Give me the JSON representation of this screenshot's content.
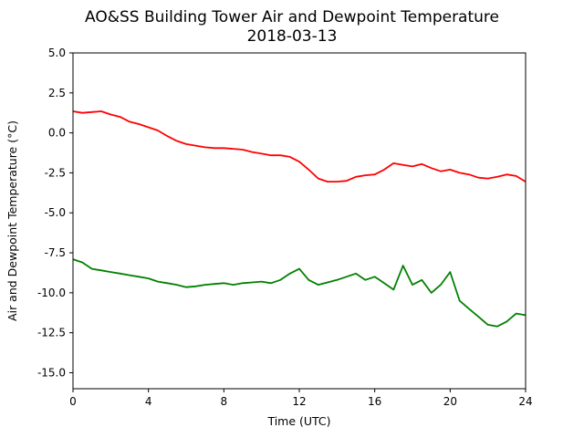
{
  "chart_data": {
    "type": "line",
    "title": "AO&SS Building Tower Air and Dewpoint Temperature",
    "subtitle": "2018-03-13",
    "xlabel": "Time (UTC)",
    "ylabel": "Air and Dewpoint Temperature (°C)",
    "xlim": [
      0,
      24
    ],
    "ylim": [
      -16.0,
      5.0
    ],
    "xticks": [
      0,
      4,
      8,
      12,
      16,
      20,
      24
    ],
    "yticks": [
      "5.0",
      "2.5",
      "0.0",
      "-2.5",
      "-5.0",
      "-7.5",
      "-10.0",
      "-12.5",
      "-15.0"
    ],
    "grid": false,
    "legend": "none",
    "series": [
      {
        "color": "#ff0000",
        "x": [
          0,
          0.5,
          1,
          1.5,
          2,
          2.5,
          3,
          3.5,
          4,
          4.5,
          5,
          5.5,
          6,
          6.5,
          7,
          7.5,
          8,
          8.5,
          9,
          9.5,
          10,
          10.5,
          11,
          11.5,
          12,
          12.5,
          13,
          13.5,
          14,
          14.5,
          15,
          15.5,
          16,
          16.5,
          17,
          17.5,
          18,
          18.5,
          19,
          19.5,
          20,
          20.5,
          21,
          21.5,
          22,
          22.5,
          23,
          23.5,
          24
        ],
        "y": [
          1.35,
          1.25,
          1.3,
          1.35,
          1.15,
          1.0,
          0.7,
          0.55,
          0.35,
          0.15,
          -0.2,
          -0.5,
          -0.7,
          -0.8,
          -0.9,
          -0.95,
          -0.95,
          -1.0,
          -1.05,
          -1.2,
          -1.3,
          -1.4,
          -1.4,
          -1.5,
          -1.8,
          -2.3,
          -2.85,
          -3.05,
          -3.05,
          -3.0,
          -2.75,
          -2.65,
          -2.6,
          -2.3,
          -1.9,
          -2.0,
          -2.1,
          -1.95,
          -2.2,
          -2.4,
          -2.3,
          -2.5,
          -2.6,
          -2.8,
          -2.85,
          -2.75,
          -2.6,
          -2.7,
          -3.05
        ]
      },
      {
        "color": "#008000",
        "x": [
          0,
          0.5,
          1,
          1.5,
          2,
          2.5,
          3,
          3.5,
          4,
          4.5,
          5,
          5.5,
          6,
          6.5,
          7,
          7.5,
          8,
          8.5,
          9,
          9.5,
          10,
          10.5,
          11,
          11.5,
          12,
          12.5,
          13,
          13.5,
          14,
          14.5,
          15,
          15.5,
          16,
          16.5,
          17,
          17.5,
          18,
          18.5,
          19,
          19.5,
          20,
          20.5,
          21,
          21.5,
          22,
          22.5,
          23,
          23.5,
          24
        ],
        "y": [
          -7.9,
          -8.1,
          -8.5,
          -8.6,
          -8.7,
          -8.8,
          -8.9,
          -9.0,
          -9.1,
          -9.3,
          -9.4,
          -9.5,
          -9.65,
          -9.6,
          -9.5,
          -9.45,
          -9.4,
          -9.5,
          -9.4,
          -9.35,
          -9.3,
          -9.4,
          -9.2,
          -8.8,
          -8.5,
          -9.2,
          -9.5,
          -9.35,
          -9.2,
          -9.0,
          -8.8,
          -9.2,
          -9.0,
          -9.4,
          -9.8,
          -8.3,
          -9.5,
          -9.2,
          -10.0,
          -9.5,
          -8.7,
          -10.5,
          -11.0,
          -11.5,
          -12.0,
          -12.1,
          -11.8,
          -11.3,
          -11.4
        ]
      }
    ]
  }
}
